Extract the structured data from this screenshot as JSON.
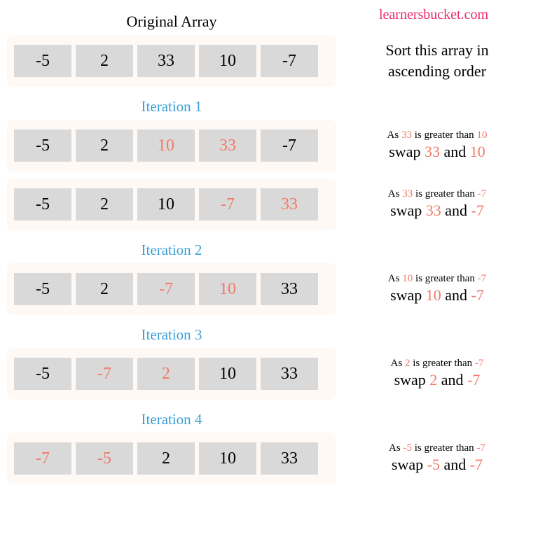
{
  "colors": {
    "brand": "#ec2b6a",
    "iteration_title": "#3c9fd6",
    "highlight": "#f27968",
    "cell_bg": "#d9d9d9",
    "array_wrap_bg": "#fff9f5",
    "text": "#000000",
    "page_bg": "#ffffff"
  },
  "header": {
    "title": "Original Array",
    "brand": "learnersbucket.com"
  },
  "instruction": {
    "line1": "Sort this array in",
    "line2": "ascending order"
  },
  "original": {
    "cells": [
      {
        "v": "-5",
        "hi": false
      },
      {
        "v": "2",
        "hi": false
      },
      {
        "v": "33",
        "hi": false
      },
      {
        "v": "10",
        "hi": false
      },
      {
        "v": "-7",
        "hi": false
      }
    ]
  },
  "iterations": [
    {
      "title": "Iteration 1",
      "steps": [
        {
          "cells": [
            {
              "v": "-5",
              "hi": false
            },
            {
              "v": "2",
              "hi": false
            },
            {
              "v": "10",
              "hi": true
            },
            {
              "v": "33",
              "hi": true
            },
            {
              "v": "-7",
              "hi": false
            }
          ],
          "note": {
            "as_a": "33",
            "as_b": "10",
            "swap_a": "33",
            "swap_b": "10"
          }
        },
        {
          "cells": [
            {
              "v": "-5",
              "hi": false
            },
            {
              "v": "2",
              "hi": false
            },
            {
              "v": "10",
              "hi": false
            },
            {
              "v": "-7",
              "hi": true
            },
            {
              "v": "33",
              "hi": true
            }
          ],
          "note": {
            "as_a": "33",
            "as_b": "-7",
            "swap_a": "33",
            "swap_b": "-7"
          }
        }
      ]
    },
    {
      "title": "Iteration 2",
      "steps": [
        {
          "cells": [
            {
              "v": "-5",
              "hi": false
            },
            {
              "v": "2",
              "hi": false
            },
            {
              "v": "-7",
              "hi": true
            },
            {
              "v": "10",
              "hi": true
            },
            {
              "v": "33",
              "hi": false
            }
          ],
          "note": {
            "as_a": "10",
            "as_b": "-7",
            "swap_a": "10",
            "swap_b": "-7"
          }
        }
      ]
    },
    {
      "title": "Iteration 3",
      "steps": [
        {
          "cells": [
            {
              "v": "-5",
              "hi": false
            },
            {
              "v": "-7",
              "hi": true
            },
            {
              "v": "2",
              "hi": true
            },
            {
              "v": "10",
              "hi": false
            },
            {
              "v": "33",
              "hi": false
            }
          ],
          "note": {
            "as_a": "2",
            "as_b": "-7",
            "swap_a": "2",
            "swap_b": "-7"
          }
        }
      ]
    },
    {
      "title": "Iteration 4",
      "steps": [
        {
          "cells": [
            {
              "v": "-7",
              "hi": true
            },
            {
              "v": "-5",
              "hi": true
            },
            {
              "v": "2",
              "hi": false
            },
            {
              "v": "10",
              "hi": false
            },
            {
              "v": "33",
              "hi": false
            }
          ],
          "note": {
            "as_a": "-5",
            "as_b": "-7",
            "swap_a": "-5",
            "swap_b": "-7"
          }
        }
      ]
    }
  ],
  "text": {
    "as_prefix": "As ",
    "as_mid": " is greater than ",
    "swap_prefix": "swap ",
    "swap_mid": " and "
  }
}
